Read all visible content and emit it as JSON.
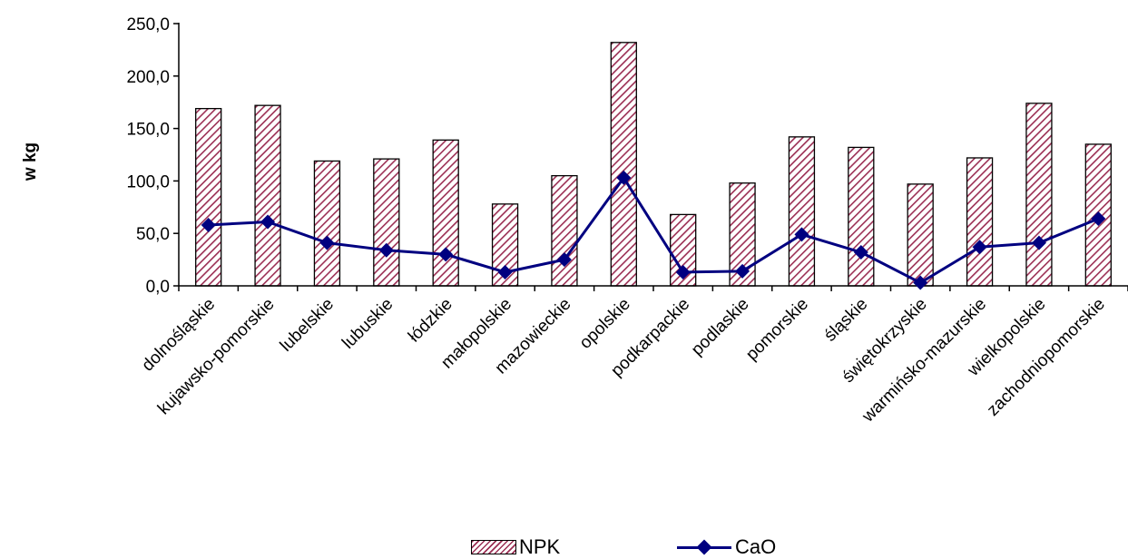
{
  "chart_data": {
    "type": "bar",
    "title": "",
    "xlabel": "",
    "ylabel": "w kg",
    "ylim": [
      0,
      250
    ],
    "yticks": [
      "0,0",
      "50,0",
      "100,0",
      "150,0",
      "200,0",
      "250,0"
    ],
    "grid": false,
    "legend": "bottom",
    "categories": [
      "dolnośląskie",
      "kujawsko-pomorskie",
      "lubelskie",
      "lubuskie",
      "łódzkie",
      "małopolskie",
      "mazowieckie",
      "opolskie",
      "podkarpackie",
      "podlaskie",
      "pomorskie",
      "śląskie",
      "świętokrzyskie",
      "warmińsko-mazurskie",
      "wielkopolskie",
      "zachodniopomorskie"
    ],
    "series": [
      {
        "name": "NPK",
        "type": "bar",
        "color": "#9b2f54",
        "values": [
          169,
          172,
          119,
          121,
          139,
          78,
          105,
          232,
          68,
          98,
          142,
          132,
          97,
          122,
          174,
          135
        ]
      },
      {
        "name": "CaO",
        "type": "line",
        "color": "#000080",
        "values": [
          58,
          61,
          41,
          34,
          30,
          13,
          25,
          103,
          13,
          14,
          49,
          32,
          3,
          37,
          41,
          64
        ]
      }
    ]
  }
}
